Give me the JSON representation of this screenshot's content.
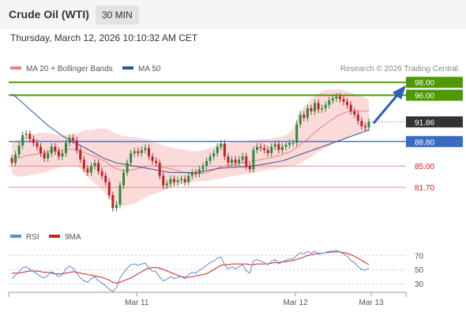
{
  "header": {
    "title": "Crude Oil (WTI)",
    "timeframe": "30 MIN",
    "datetime": "Thursday, March 12, 2026 10:10:32 AM CET"
  },
  "colors": {
    "candle_up": "#2a8a3a",
    "candle_down": "#c0202a",
    "bollinger_fill": "#fad4d4",
    "ma20": "#f08080",
    "ma50": "#2f5597",
    "resistance": "#4c9900",
    "support_line": "#5577bb",
    "support_label": "#3a6bc4",
    "price_label": "#333333",
    "bearish_level": "#d01c1c",
    "rsi": "#5b8bd9",
    "rsi_ma": "#d42020"
  },
  "chart_data": [
    {
      "type": "candlestick",
      "title": "Crude Oil (WTI)",
      "legend": [
        {
          "name": "MA 20 + Bollinger Bands",
          "color": "#f08080"
        },
        {
          "name": "MA 50",
          "color": "#2f5597"
        }
      ],
      "credit": "Research © 2026 Trading Central",
      "ylim": [
        76.2,
        99.5
      ],
      "levels": [
        {
          "value": 98.0,
          "label": "98.00",
          "kind": "resistance"
        },
        {
          "value": 96.0,
          "label": "96.00",
          "kind": "resistance"
        },
        {
          "value": 91.86,
          "label": "91.86",
          "kind": "last"
        },
        {
          "value": 88.8,
          "label": "88.80",
          "kind": "pivot"
        },
        {
          "value": 85.0,
          "label": "85.00",
          "kind": "support"
        },
        {
          "value": 81.7,
          "label": "81.70",
          "kind": "support"
        }
      ],
      "x_ticks": [
        {
          "label": "Mar 11",
          "index": 34
        },
        {
          "label": "Mar 12",
          "index": 78
        },
        {
          "label": "Mar 13",
          "index": 99
        }
      ],
      "closes": [
        85.5,
        86.8,
        88.2,
        89.8,
        90.0,
        89.2,
        88.6,
        88.0,
        87.0,
        86.2,
        87.0,
        88.0,
        87.3,
        86.5,
        87.0,
        88.6,
        89.4,
        89.0,
        87.5,
        86.0,
        84.6,
        84.0,
        85.0,
        85.5,
        84.2,
        83.5,
        82.5,
        80.5,
        78.5,
        79.0,
        82.0,
        84.0,
        85.5,
        87.0,
        87.3,
        87.0,
        87.5,
        87.8,
        86.5,
        85.8,
        85.5,
        83.5,
        82.0,
        82.3,
        83.0,
        82.5,
        82.8,
        83.0,
        82.5,
        83.5,
        84.0,
        83.8,
        84.5,
        85.0,
        85.8,
        86.5,
        87.0,
        88.0,
        88.5,
        86.5,
        85.5,
        86.0,
        85.5,
        86.0,
        86.5,
        85.0,
        84.5,
        87.5,
        88.0,
        87.8,
        87.5,
        87.0,
        88.0,
        88.4,
        87.5,
        88.0,
        88.3,
        88.6,
        88.6,
        91.5,
        93.0,
        92.5,
        94.0,
        93.5,
        94.8,
        93.8,
        94.0,
        94.5,
        95.2,
        95.5,
        95.8,
        95.4,
        95.0,
        94.5,
        93.5,
        93.0,
        92.0,
        91.2,
        91.0,
        91.86
      ],
      "ma20": [
        86.2,
        86.2,
        86.3,
        86.4,
        86.6,
        86.7,
        86.8,
        86.9,
        87.0,
        87.1,
        87.2,
        87.3,
        87.4,
        87.4,
        87.5,
        87.6,
        87.6,
        87.6,
        87.5,
        87.3,
        87.1,
        86.9,
        86.7,
        86.5,
        86.3,
        86.0,
        85.7,
        85.3,
        84.9,
        84.6,
        84.4,
        84.3,
        84.3,
        84.4,
        84.5,
        84.6,
        84.8,
        84.9,
        85.0,
        85.0,
        85.0,
        84.9,
        84.8,
        84.7,
        84.6,
        84.4,
        84.3,
        84.1,
        84.0,
        83.9,
        83.8,
        83.8,
        83.8,
        83.9,
        84.0,
        84.2,
        84.4,
        84.7,
        84.9,
        85.0,
        85.1,
        85.2,
        85.3,
        85.4,
        85.5,
        85.6,
        85.7,
        85.8,
        85.9,
        86.0,
        86.1,
        86.2,
        86.3,
        86.5,
        86.6,
        86.8,
        87.0,
        87.2,
        87.5,
        87.9,
        88.4,
        88.8,
        89.2,
        89.7,
        90.2,
        90.7,
        91.1,
        91.5,
        91.9,
        92.3,
        92.7,
        93.0,
        93.2,
        93.4,
        93.5,
        93.6,
        93.6,
        93.6,
        93.5,
        93.5
      ],
      "bb_upper": [
        88.6,
        88.9,
        89.1,
        89.4,
        89.6,
        89.8,
        90.0,
        90.1,
        90.2,
        90.2,
        90.1,
        90.0,
        89.9,
        89.8,
        89.8,
        89.8,
        89.9,
        90.0,
        90.1,
        90.3,
        90.5,
        90.6,
        90.6,
        90.7,
        90.8,
        90.8,
        90.8,
        90.6,
        90.3,
        90.0,
        89.8,
        89.7,
        89.6,
        89.5,
        89.5,
        89.4,
        89.3,
        89.2,
        89.0,
        88.8,
        88.6,
        88.4,
        88.2,
        88.0,
        87.9,
        87.8,
        87.7,
        87.6,
        87.5,
        87.4,
        87.3,
        87.3,
        87.4,
        87.5,
        87.6,
        87.8,
        88.0,
        88.2,
        88.4,
        88.5,
        88.6,
        88.7,
        88.8,
        88.8,
        88.9,
        88.9,
        89.0,
        89.0,
        89.1,
        89.1,
        89.2,
        89.2,
        89.3,
        89.4,
        89.5,
        89.6,
        89.8,
        90.2,
        91.0,
        92.2,
        93.5,
        94.2,
        94.8,
        95.4,
        95.9,
        96.3,
        96.6,
        96.8,
        96.9,
        96.9,
        96.9,
        96.9,
        96.8,
        96.6,
        96.4,
        96.2,
        96.0,
        95.8,
        95.6,
        95.4
      ],
      "bb_lower": [
        83.8,
        83.5,
        83.4,
        83.4,
        83.5,
        83.6,
        83.7,
        83.8,
        83.9,
        84.0,
        84.2,
        84.4,
        84.6,
        84.8,
        84.9,
        85.0,
        85.0,
        85.0,
        84.9,
        84.6,
        84.0,
        83.4,
        82.8,
        82.3,
        81.9,
        81.3,
        80.6,
        79.9,
        79.4,
        79.0,
        78.9,
        78.8,
        78.9,
        79.0,
        79.2,
        79.5,
        79.8,
        80.1,
        80.4,
        80.6,
        80.8,
        81.0,
        81.2,
        81.4,
        81.6,
        81.8,
        82.0,
        82.2,
        82.3,
        82.4,
        82.5,
        82.6,
        82.6,
        82.7,
        82.7,
        82.8,
        82.9,
        83.0,
        83.1,
        83.2,
        83.3,
        83.4,
        83.5,
        83.6,
        83.7,
        83.8,
        83.9,
        84.0,
        84.1,
        84.2,
        84.3,
        84.4,
        84.5,
        84.6,
        84.7,
        84.8,
        84.9,
        85.0,
        85.0,
        85.2,
        85.5,
        85.8,
        86.1,
        86.4,
        86.8,
        87.2,
        87.5,
        87.8,
        88.1,
        88.4,
        88.7,
        88.9,
        89.2,
        89.4,
        89.6,
        89.8,
        90.0,
        90.2,
        90.4,
        90.6
      ],
      "ma50": [
        96.2,
        95.8,
        95.3,
        94.8,
        94.3,
        93.8,
        93.3,
        92.8,
        92.3,
        91.8,
        91.3,
        90.9,
        90.5,
        90.1,
        89.7,
        89.4,
        89.1,
        88.8,
        88.5,
        88.2,
        87.9,
        87.6,
        87.3,
        87.0,
        86.7,
        86.4,
        86.1,
        85.9,
        85.7,
        85.5,
        85.4,
        85.3,
        85.2,
        85.1,
        85.0,
        84.9,
        84.8,
        84.7,
        84.6,
        84.5,
        84.4,
        84.3,
        84.2,
        84.1,
        84.0,
        84.0,
        84.0,
        84.0,
        84.0,
        84.0,
        84.0,
        84.0,
        84.1,
        84.2,
        84.3,
        84.4,
        84.5,
        84.6,
        84.7,
        84.7,
        84.8,
        84.8,
        84.8,
        84.9,
        84.9,
        84.9,
        85.0,
        85.0,
        85.1,
        85.2,
        85.3,
        85.4,
        85.5,
        85.6,
        85.7,
        85.8,
        86.0,
        86.2,
        86.4,
        86.6,
        86.8,
        87.0,
        87.2,
        87.4,
        87.6,
        87.8,
        88.0,
        88.2,
        88.4,
        88.6,
        88.8,
        89.0,
        89.2,
        89.4,
        89.6,
        89.8,
        90.0,
        90.2,
        90.4,
        90.6
      ]
    },
    {
      "type": "line",
      "legend": [
        {
          "name": "RSI",
          "color": "#5b8bd9"
        },
        {
          "name": "9MA",
          "color": "#d42020"
        }
      ],
      "y_ticks": [
        70,
        50,
        30
      ],
      "ylim": [
        20,
        85
      ],
      "series": [
        {
          "name": "RSI",
          "values": [
            37,
            42,
            47,
            53,
            54,
            50,
            47,
            44,
            40,
            38,
            42,
            47,
            44,
            40,
            43,
            51,
            55,
            52,
            45,
            38,
            34,
            32,
            37,
            40,
            34,
            31,
            27,
            22,
            19,
            24,
            38,
            46,
            52,
            57,
            58,
            56,
            58,
            59,
            52,
            48,
            47,
            39,
            34,
            36,
            40,
            37,
            39,
            40,
            37,
            43,
            46,
            45,
            49,
            52,
            56,
            60,
            62,
            66,
            68,
            57,
            51,
            54,
            51,
            54,
            57,
            48,
            45,
            62,
            64,
            62,
            60,
            57,
            62,
            64,
            58,
            61,
            63,
            65,
            65,
            70,
            74,
            72,
            76,
            73,
            76,
            72,
            73,
            74,
            76,
            76,
            77,
            75,
            72,
            69,
            63,
            60,
            54,
            50,
            49,
            52
          ]
        },
        {
          "name": "9MA",
          "values": [
            45,
            45,
            45,
            46,
            47,
            48,
            48,
            48,
            47,
            46,
            46,
            45,
            44,
            44,
            44,
            45,
            46,
            47,
            46,
            45,
            44,
            43,
            42,
            41,
            40,
            39,
            37,
            35,
            32,
            31,
            32,
            34,
            36,
            38,
            41,
            44,
            47,
            50,
            52,
            53,
            53,
            52,
            50,
            48,
            46,
            44,
            42,
            40,
            39,
            39,
            40,
            41,
            42,
            43,
            44,
            47,
            50,
            53,
            56,
            57,
            57,
            58,
            58,
            58,
            58,
            58,
            57,
            57,
            58,
            58,
            58,
            58,
            59,
            60,
            60,
            61,
            61,
            62,
            63,
            64,
            66,
            68,
            70,
            71,
            72,
            73,
            73,
            74,
            74,
            75,
            75,
            75,
            74,
            73,
            71,
            69,
            66,
            63,
            60,
            57
          ]
        }
      ]
    }
  ]
}
